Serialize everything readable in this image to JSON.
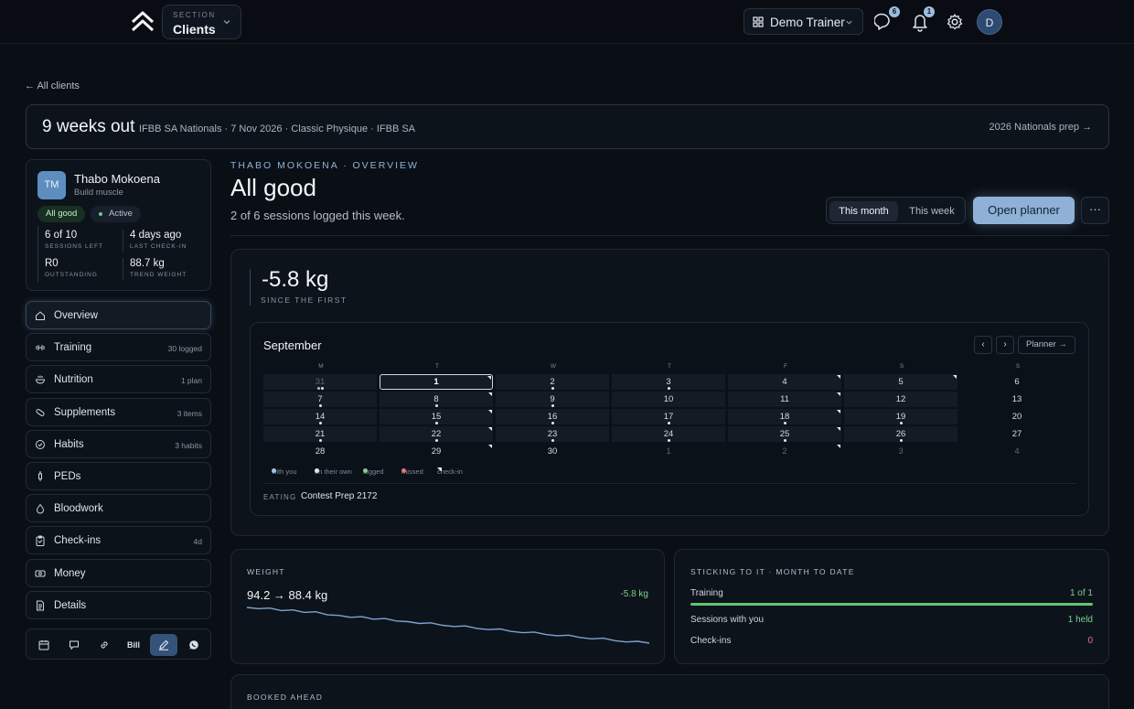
{
  "header": {
    "section_label": "SECTION",
    "section_value": "Clients",
    "trainer_name": "Demo Trainer",
    "messages_count": "6",
    "notifications_count": "1",
    "avatar_initial": "D"
  },
  "back_link": "← All clients",
  "banner": {
    "weeks_out": "9 weeks out",
    "meta": "IFBB SA Nationals · 7 Nov 2026 · Classic Physique · IFBB SA",
    "prep_link": "2026 Nationals prep →"
  },
  "client": {
    "initials": "TM",
    "name": "Thabo Mokoena",
    "goal": "Build muscle",
    "status_pill": "All good",
    "active_pill": "Active",
    "stats": [
      {
        "value": "6 of 10",
        "label": "SESSIONS LEFT"
      },
      {
        "value": "4 days ago",
        "label": "LAST CHECK-IN"
      },
      {
        "value": "R0",
        "label": "OUTSTANDING"
      },
      {
        "value": "88.7 kg",
        "label": "TREND WEIGHT"
      }
    ]
  },
  "nav": [
    {
      "label": "Overview",
      "count": "",
      "icon": "home-icon"
    },
    {
      "label": "Training",
      "count": "30 logged",
      "icon": "dumbbell-icon"
    },
    {
      "label": "Nutrition",
      "count": "1 plan",
      "icon": "bowl-icon"
    },
    {
      "label": "Supplements",
      "count": "3 items",
      "icon": "pill-icon"
    },
    {
      "label": "Habits",
      "count": "3 habits",
      "icon": "check-circle-icon"
    },
    {
      "label": "PEDs",
      "count": "",
      "icon": "syringe-icon"
    },
    {
      "label": "Bloodwork",
      "count": "",
      "icon": "drop-icon"
    },
    {
      "label": "Check-ins",
      "count": "4d",
      "icon": "clipboard-icon"
    },
    {
      "label": "Money",
      "count": "",
      "icon": "banknote-icon"
    },
    {
      "label": "Details",
      "count": "",
      "icon": "document-icon"
    }
  ],
  "toolbar": {
    "bill_label": "Bill"
  },
  "overview": {
    "eyebrow": "THABO MOKOENA · OVERVIEW",
    "headline": "All good",
    "subline": "2 of 6 sessions logged this week.",
    "seg_month": "This month",
    "seg_week": "This week",
    "open_planner": "Open planner",
    "more": "···"
  },
  "weight_change": {
    "value": "-5.8 kg",
    "label": "SINCE THE FIRST"
  },
  "calendar": {
    "month": "September",
    "prev": "‹",
    "next": "›",
    "planner_link": "Planner →",
    "weekdays": [
      "M",
      "T",
      "W",
      "T",
      "F",
      "S",
      "S"
    ],
    "weeks": [
      [
        {
          "d": "31",
          "out": true,
          "dots": [
            "you",
            "own"
          ]
        },
        {
          "d": "1",
          "sel": true,
          "checkin": true
        },
        {
          "d": "2",
          "dots": [
            "own"
          ]
        },
        {
          "d": "3",
          "dots": [
            "own"
          ]
        },
        {
          "d": "4",
          "checkin": true
        },
        {
          "d": "5",
          "checkin": true
        },
        {
          "d": "6"
        }
      ],
      [
        {
          "d": "7",
          "dots": [
            "own"
          ]
        },
        {
          "d": "8",
          "dots": [
            "own"
          ],
          "checkin": true
        },
        {
          "d": "9",
          "dots": [
            "own"
          ]
        },
        {
          "d": "10"
        },
        {
          "d": "11",
          "checkin": true
        },
        {
          "d": "12"
        },
        {
          "d": "13"
        }
      ],
      [
        {
          "d": "14",
          "dots": [
            "own"
          ]
        },
        {
          "d": "15",
          "dots": [
            "own"
          ],
          "checkin": true
        },
        {
          "d": "16",
          "dots": [
            "own"
          ]
        },
        {
          "d": "17",
          "dots": [
            "own"
          ]
        },
        {
          "d": "18",
          "dots": [
            "own"
          ],
          "checkin": true
        },
        {
          "d": "19",
          "dots": [
            "own"
          ]
        },
        {
          "d": "20"
        }
      ],
      [
        {
          "d": "21",
          "dots": [
            "own"
          ]
        },
        {
          "d": "22",
          "dots": [
            "own"
          ],
          "checkin": true
        },
        {
          "d": "23",
          "dots": [
            "own"
          ]
        },
        {
          "d": "24",
          "dots": [
            "own"
          ]
        },
        {
          "d": "25",
          "dots": [
            "own"
          ],
          "checkin": true
        },
        {
          "d": "26",
          "dots": [
            "own"
          ]
        },
        {
          "d": "27"
        }
      ],
      [
        {
          "d": "28"
        },
        {
          "d": "29",
          "checkin": true
        },
        {
          "d": "30"
        },
        {
          "d": "1",
          "out": true
        },
        {
          "d": "2",
          "out": true,
          "checkin": true
        },
        {
          "d": "3",
          "out": true
        },
        {
          "d": "4",
          "out": true
        }
      ]
    ],
    "legend": [
      {
        "label": "with you",
        "color": "#9dc3ea",
        "shape": "dot"
      },
      {
        "label": "on their own",
        "color": "#e1e7ee",
        "shape": "dot"
      },
      {
        "label": "logged",
        "color": "#7fd08f",
        "shape": "dot"
      },
      {
        "label": "missed",
        "color": "#e0787a",
        "shape": "dot"
      },
      {
        "label": "check-in",
        "color": "#e6ebf2",
        "shape": "tri"
      }
    ],
    "eating_label": "EATING",
    "eating_value": "Contest Prep 2172"
  },
  "weight_card": {
    "label": "WEIGHT",
    "range": "94.2 → 88.4 kg",
    "delta": "-5.8 kg",
    "trend": [
      94.2,
      94.0,
      94.1,
      93.7,
      93.8,
      93.4,
      93.5,
      93.0,
      92.9,
      92.6,
      92.7,
      92.3,
      92.4,
      92.0,
      91.9,
      91.6,
      91.7,
      91.3,
      91.1,
      91.2,
      90.8,
      90.6,
      90.7,
      90.3,
      90.1,
      90.2,
      89.8,
      89.6,
      89.7,
      89.3,
      89.1,
      89.2,
      88.8,
      88.6,
      88.7,
      88.4
    ]
  },
  "sticking": {
    "label": "STICKING TO IT · MONTH TO DATE",
    "rows": [
      {
        "label": "Training",
        "value": "1 of 1",
        "color": "#7bd18c",
        "fill": 1.0
      },
      {
        "label": "Sessions with you",
        "value": "1 held",
        "color": "#7bd18c"
      },
      {
        "label": "Check-ins",
        "value": "0",
        "color": "#e0787a"
      }
    ]
  },
  "booked_ahead": {
    "label": "BOOKED AHEAD"
  }
}
